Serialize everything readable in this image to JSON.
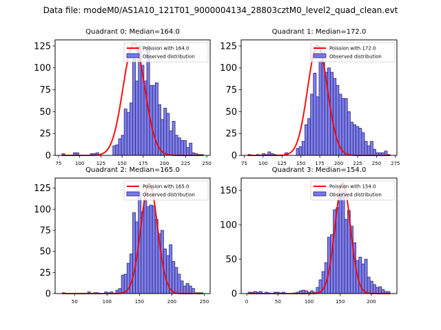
{
  "suptitle": "Data file: modeM0/AS1A10_121T01_9000004134_28803cztM0_level2_quad_clean.evt",
  "chart_data": [
    {
      "type": "bar",
      "title": "Quadrant 0: Median=164.0",
      "median": 164.0,
      "xlim": [
        71,
        254
      ],
      "ylim": [
        0,
        132
      ],
      "xticks": [
        75,
        100,
        125,
        150,
        175,
        200,
        225,
        250
      ],
      "yticks": [
        0,
        25,
        50,
        75,
        100,
        125
      ],
      "bins": {
        "start": 79,
        "end": 246,
        "count": 50
      },
      "values": [
        2,
        0,
        0,
        0,
        3,
        3,
        0,
        0,
        0,
        0,
        2,
        2,
        3,
        0,
        0,
        0,
        0,
        0,
        11,
        12,
        19,
        23,
        53,
        49,
        60,
        110,
        85,
        125,
        103,
        85,
        125,
        80,
        80,
        83,
        58,
        41,
        54,
        48,
        28,
        39,
        23,
        20,
        17,
        17,
        9,
        14,
        3,
        2,
        1,
        1
      ],
      "curve_label": "Poission with 164.0",
      "curve_peak": 128,
      "legend": [
        "Poission with 164.0",
        "Observed distribution"
      ],
      "legend_position": "upper right"
    },
    {
      "type": "bar",
      "title": "Quadrant 1: Median=172.0",
      "median": 172.0,
      "xlim": [
        71,
        277
      ],
      "ylim": [
        0,
        132
      ],
      "xticks": [
        75,
        100,
        125,
        150,
        175,
        200,
        225,
        250,
        275
      ],
      "yticks": [
        0,
        25,
        50,
        75,
        100,
        125
      ],
      "bins": {
        "start": 80,
        "end": 268,
        "count": 50
      },
      "values": [
        1,
        0,
        0,
        1,
        0,
        2,
        1,
        4,
        2,
        1,
        0,
        0,
        0,
        3,
        0,
        0,
        0,
        8,
        10,
        16,
        35,
        42,
        70,
        94,
        67,
        108,
        106,
        95,
        100,
        95,
        88,
        80,
        70,
        65,
        65,
        50,
        38,
        35,
        33,
        31,
        26,
        16,
        11,
        16,
        7,
        3,
        3,
        3,
        5,
        1
      ],
      "curve_label": "Poission with 172.0",
      "curve_peak": 126,
      "legend": [
        "Poission with 172.0",
        "Observed distribution"
      ],
      "legend_position": "upper right"
    },
    {
      "type": "bar",
      "title": "Quadrant 2: Median=165.0",
      "median": 165.0,
      "xlim": [
        20,
        259
      ],
      "ylim": [
        0,
        137
      ],
      "xticks": [
        50,
        100,
        150,
        200,
        250
      ],
      "yticks": [
        0,
        25,
        50,
        75,
        100,
        125
      ],
      "bins": {
        "start": 31,
        "end": 248,
        "count": 50
      },
      "values": [
        1,
        0,
        0,
        0,
        0,
        0,
        0,
        0,
        0,
        2,
        0,
        1,
        1,
        0,
        0,
        2,
        1,
        2,
        0,
        4,
        6,
        22,
        23,
        36,
        47,
        96,
        85,
        120,
        97,
        110,
        103,
        105,
        104,
        88,
        71,
        75,
        53,
        45,
        58,
        38,
        31,
        23,
        15,
        9,
        12,
        9,
        6,
        1,
        1,
        1
      ],
      "curve_label": "Poission with 165.0",
      "curve_peak": 131,
      "legend": [
        "Poission with 165.0",
        "Observed distribution"
      ],
      "legend_position": "upper right"
    },
    {
      "type": "bar",
      "title": "Quadrant 3: Median=154.0",
      "median": 154.0,
      "xlim": [
        -9,
        241
      ],
      "ylim": [
        0,
        168
      ],
      "xticks": [
        0,
        50,
        100,
        150,
        200
      ],
      "yticks": [
        0,
        50,
        100,
        150
      ],
      "bins": {
        "start": 2,
        "end": 230,
        "count": 50
      },
      "values": [
        2,
        2,
        3,
        2,
        3,
        0,
        2,
        1,
        0,
        2,
        2,
        1,
        2,
        0,
        0,
        0,
        1,
        2,
        4,
        5,
        4,
        2,
        4,
        2,
        9,
        20,
        32,
        45,
        82,
        86,
        122,
        125,
        143,
        148,
        108,
        121,
        98,
        74,
        48,
        53,
        43,
        50,
        24,
        18,
        13,
        9,
        10,
        6,
        3,
        3
      ],
      "curve_label": "Poission with 154.0",
      "curve_peak": 161,
      "legend": [
        "Poission with 154.0",
        "Observed distribution"
      ],
      "legend_position": "upper right"
    }
  ],
  "colors": {
    "bar_fill": "#7777ee",
    "bar_edge": "#2a2a6a",
    "curve": "#ff0000",
    "axis": "#000000"
  }
}
